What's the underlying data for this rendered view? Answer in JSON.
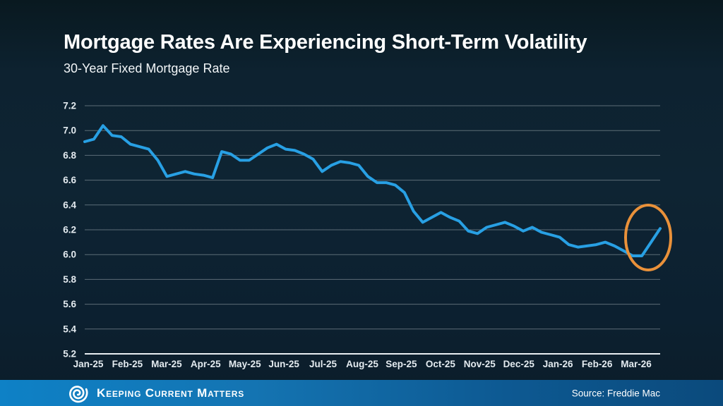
{
  "slide": {
    "title": "Mortgage Rates Are Experiencing Short-Term Volatility",
    "subtitle": "30-Year Fixed Mortgage Rate",
    "source": "Source: Freddie Mac",
    "brand": "Keeping Current Matters"
  },
  "colors": {
    "line": "#28a0e4",
    "annotation": "#e9913a",
    "gridline": "#77858e",
    "axis_base": "#e8eef2",
    "tick_text": "#e4ebf0",
    "footer_left": "#0e81c6",
    "footer_right": "#0b4a7c",
    "text": "#ffffff"
  },
  "chart_data": {
    "type": "line",
    "title": "30-Year Fixed Mortgage Rate",
    "frequency": "weekly",
    "xlabel": "",
    "ylabel": "",
    "ylim": [
      5.2,
      7.2
    ],
    "grid": true,
    "legend": false,
    "y_ticks": [
      "7.2",
      "7.0",
      "6.8",
      "6.6",
      "6.4",
      "6.2",
      "6.0",
      "5.8",
      "5.6",
      "5.4",
      "5.2"
    ],
    "x_tick_labels": [
      "Jan-25",
      "Feb-25",
      "Mar-25",
      "Apr-25",
      "May-25",
      "Jun-25",
      "Jul-25",
      "Aug-25",
      "Sep-25",
      "Oct-25",
      "Nov-25",
      "Dec-25",
      "Jan-26",
      "Feb-26",
      "Mar-26"
    ],
    "series": [
      {
        "name": "30-Year Fixed Mortgage Rate",
        "values": [
          6.91,
          6.93,
          7.04,
          6.96,
          6.95,
          6.89,
          6.87,
          6.85,
          6.76,
          6.63,
          6.65,
          6.67,
          6.65,
          6.64,
          6.62,
          6.83,
          6.81,
          6.76,
          6.76,
          6.81,
          6.86,
          6.89,
          6.85,
          6.84,
          6.81,
          6.77,
          6.67,
          6.72,
          6.75,
          6.74,
          6.72,
          6.63,
          6.58,
          6.58,
          6.56,
          6.5,
          6.35,
          6.26,
          6.3,
          6.34,
          6.3,
          6.27,
          6.19,
          6.17,
          6.22,
          6.24,
          6.26,
          6.23,
          6.19,
          6.22,
          6.18,
          6.16,
          6.14,
          6.08,
          6.06,
          6.07,
          6.08,
          6.1,
          6.07,
          6.03,
          5.99,
          5.99,
          6.1,
          6.21
        ]
      }
    ],
    "annotation": {
      "shape": "ellipse",
      "highlights": "recent uptick at end of series",
      "color": "#e9913a"
    }
  }
}
